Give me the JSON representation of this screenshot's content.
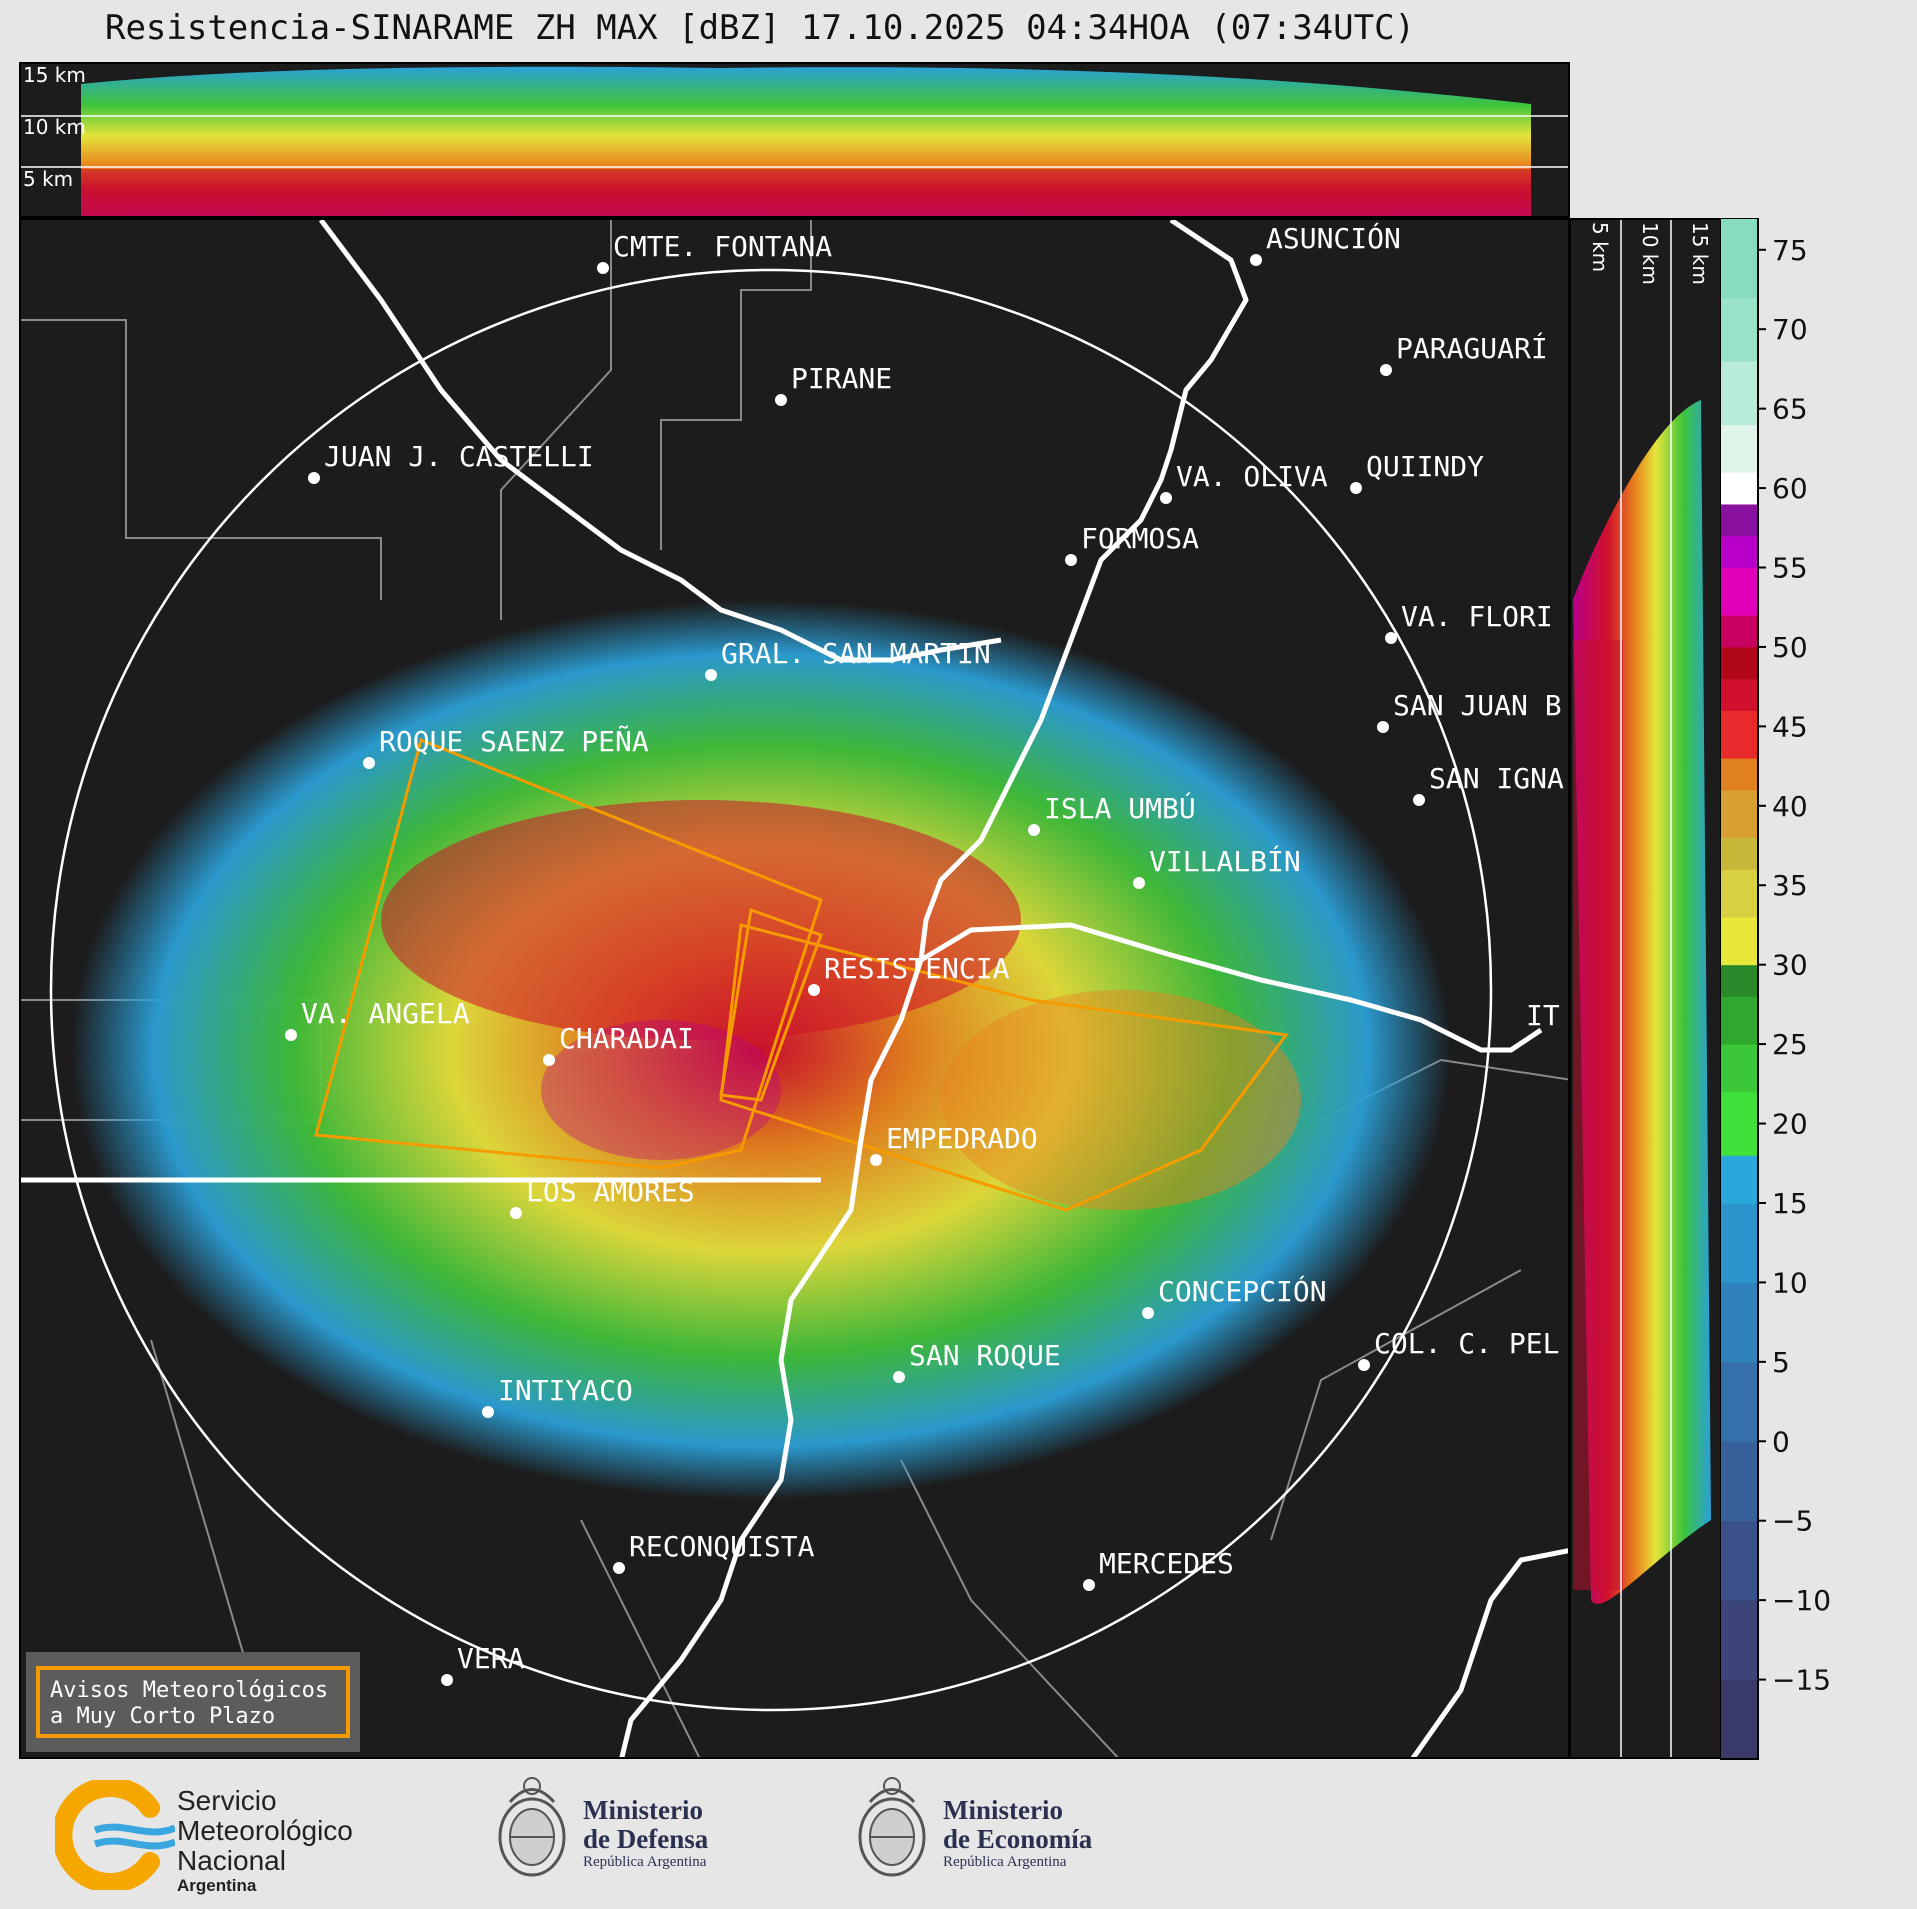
{
  "title": "Resistencia-SINARAME ZH MAX [dBZ] 17.10.2025 04:34HOA (07:34UTC)",
  "altitude_labels": [
    "15 km",
    "10 km",
    "5 km"
  ],
  "cities": [
    {
      "name": "CMTE. FONTANA"
    },
    {
      "name": "ASUNCIÓN"
    },
    {
      "name": "PARAGUARÍ"
    },
    {
      "name": "PIRANE"
    },
    {
      "name": "JUAN J. CASTELLI"
    },
    {
      "name": "VA. OLIVA"
    },
    {
      "name": "QUIINDY"
    },
    {
      "name": "FORMOSA"
    },
    {
      "name": "VA. FLORI"
    },
    {
      "name": "GRAL. SAN MARTIN"
    },
    {
      "name": "SAN JUAN B"
    },
    {
      "name": "ROQUE SAENZ PEÑA"
    },
    {
      "name": "SAN IGNA"
    },
    {
      "name": "ISLA UMBÚ"
    },
    {
      "name": "VILLALBÍN"
    },
    {
      "name": "RESISTENCIA"
    },
    {
      "name": "VA. ANGELA"
    },
    {
      "name": "CHARADAI"
    },
    {
      "name": "IT"
    },
    {
      "name": "EMPEDRADO"
    },
    {
      "name": "LOS AMORES"
    },
    {
      "name": "CONCEPCIÓN"
    },
    {
      "name": "COL. C. PEL"
    },
    {
      "name": "SAN ROQUE"
    },
    {
      "name": "INTIYACO"
    },
    {
      "name": "RECONQUISTA"
    },
    {
      "name": "MERCEDES"
    },
    {
      "name": "VERA"
    }
  ],
  "colorbar": {
    "unit": "dBZ",
    "ticks": [
      "75",
      "70",
      "65",
      "60",
      "55",
      "50",
      "45",
      "40",
      "35",
      "30",
      "25",
      "20",
      "15",
      "10",
      "5",
      "0",
      "−5",
      "−10",
      "−15"
    ],
    "range": [
      -20,
      77
    ]
  },
  "legend": {
    "line1": "Avisos Meteorológicos",
    "line2": "a Muy Corto Plazo",
    "border_color": "#f59b00"
  },
  "logos": {
    "smn_line1": "Servicio",
    "smn_line2": "Meteorológico",
    "smn_line3": "Nacional",
    "smn_country": "Argentina",
    "defensa_line1": "Ministerio",
    "defensa_line2": "de Defensa",
    "defensa_sub": "República Argentina",
    "economia_line1": "Ministerio",
    "economia_line2": "de Economía",
    "economia_sub": "República Argentina"
  }
}
